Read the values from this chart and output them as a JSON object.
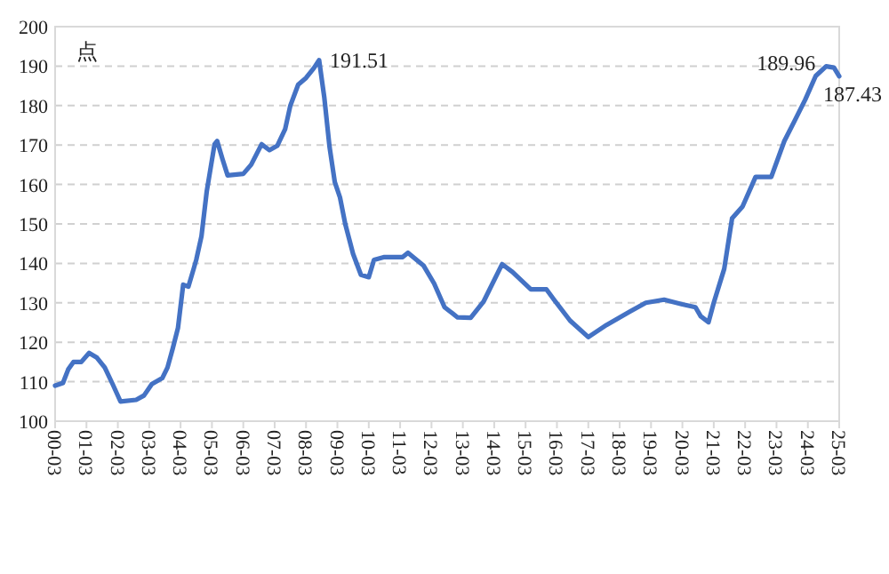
{
  "chart_data": {
    "type": "line",
    "ylabel": "点",
    "grid": "y",
    "marker": "none",
    "line_style": "solid",
    "xlim": [
      "2000-03",
      "2025-03"
    ],
    "xticks": [
      {
        "value": "2000-03",
        "label": "00-03"
      },
      {
        "value": "2001-03",
        "label": "01-03"
      },
      {
        "value": "2002-03",
        "label": "02-03"
      },
      {
        "value": "2003-03",
        "label": "03-03"
      },
      {
        "value": "2004-03",
        "label": "04-03"
      },
      {
        "value": "2005-03",
        "label": "05-03"
      },
      {
        "value": "2006-03",
        "label": "06-03"
      },
      {
        "value": "2007-03",
        "label": "07-03"
      },
      {
        "value": "2008-03",
        "label": "08-03"
      },
      {
        "value": "2009-03",
        "label": "09-03"
      },
      {
        "value": "2010-03",
        "label": "10-03"
      },
      {
        "value": "2011-03",
        "label": "11-03"
      },
      {
        "value": "2012-03",
        "label": "12-03"
      },
      {
        "value": "2013-03",
        "label": "13-03"
      },
      {
        "value": "2014-03",
        "label": "14-03"
      },
      {
        "value": "2015-03",
        "label": "15-03"
      },
      {
        "value": "2016-03",
        "label": "16-03"
      },
      {
        "value": "2017-03",
        "label": "17-03"
      },
      {
        "value": "2018-03",
        "label": "18-03"
      },
      {
        "value": "2019-03",
        "label": "19-03"
      },
      {
        "value": "2020-03",
        "label": "20-03"
      },
      {
        "value": "2021-03",
        "label": "21-03"
      },
      {
        "value": "2022-03",
        "label": "22-03"
      },
      {
        "value": "2023-03",
        "label": "23-03"
      },
      {
        "value": "2024-03",
        "label": "24-03"
      },
      {
        "value": "2025-03",
        "label": "25-03"
      }
    ],
    "ylim": [
      100,
      200
    ],
    "yticks": [
      100,
      110,
      120,
      130,
      140,
      150,
      160,
      170,
      180,
      190,
      200
    ],
    "x": [
      "2000-03",
      "2000-06",
      "2000-08",
      "2000-10",
      "2001-01",
      "2001-04",
      "2001-07",
      "2001-10",
      "2002-01",
      "2002-04",
      "2002-10",
      "2003-01",
      "2003-04",
      "2003-08",
      "2003-10",
      "2003-12",
      "2004-02",
      "2004-04",
      "2004-06",
      "2004-08",
      "2004-09",
      "2004-11",
      "2005-01",
      "2005-04",
      "2005-05",
      "2005-07",
      "2005-09",
      "2006-03",
      "2006-06",
      "2006-10",
      "2007-01",
      "2007-04",
      "2007-07",
      "2007-09",
      "2007-12",
      "2008-03",
      "2008-06",
      "2008-08",
      "2008-10",
      "2008-12",
      "2009-02",
      "2009-04",
      "2009-06",
      "2009-09",
      "2009-12",
      "2010-03",
      "2010-05",
      "2010-09",
      "2011-04",
      "2011-06",
      "2011-12",
      "2012-04",
      "2012-08",
      "2013-01",
      "2013-06",
      "2013-11",
      "2014-06",
      "2014-10",
      "2015-05",
      "2015-11",
      "2016-02",
      "2016-08",
      "2017-03",
      "2017-10",
      "2018-07",
      "2019-01",
      "2019-08",
      "2020-03",
      "2020-08",
      "2020-10",
      "2021-01",
      "2021-03",
      "2021-07",
      "2021-10",
      "2022-02",
      "2022-07",
      "2023-01",
      "2023-06",
      "2023-10",
      "2024-02",
      "2024-06",
      "2024-10",
      "2025-01",
      "2025-03"
    ],
    "series": [
      {
        "color": "#4472c4",
        "values": [
          109,
          109.7,
          113.1,
          115,
          115,
          117.3,
          116.1,
          113.6,
          109.4,
          105,
          105.4,
          106.5,
          109.4,
          110.9,
          113.6,
          118.4,
          123.6,
          134.6,
          134.1,
          138.6,
          140.9,
          146.9,
          158.2,
          170.2,
          171,
          166.5,
          162.3,
          162.7,
          165,
          170.2,
          168.7,
          169.8,
          174,
          180,
          185.3,
          187,
          189.5,
          191.51,
          182,
          169.5,
          160.6,
          156.7,
          150,
          142.4,
          137.1,
          136.5,
          140.9,
          141.6,
          141.6,
          142.7,
          139.4,
          134.9,
          128.9,
          126.3,
          126.2,
          130.4,
          139.8,
          137.8,
          133.4,
          133.4,
          130.7,
          125.5,
          121.3,
          124.4,
          127.8,
          130,
          130.8,
          129.6,
          128.9,
          126.6,
          125.1,
          130,
          138.6,
          151.4,
          154.4,
          161.9,
          161.9,
          171,
          176.2,
          181.5,
          187.5,
          189.96,
          189.6,
          187.43
        ]
      }
    ],
    "annotations": [
      {
        "text": "191.51",
        "x": "2008-08",
        "y": 191.51
      },
      {
        "text": "189.96",
        "x": "2024-10",
        "y": 189.96
      },
      {
        "text": "187.43",
        "x": "2025-03",
        "y": 187.43
      }
    ]
  }
}
